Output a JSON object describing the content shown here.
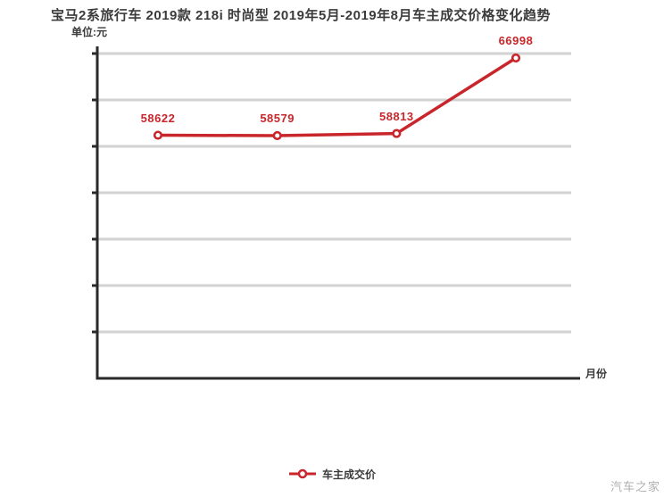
{
  "header": {
    "title": "宝马2系旅行车 2019款 218i 时尚型 2019年5月-2019年8月车主成交价格变化趋势"
  },
  "axes": {
    "y_unit_label": "单位:元",
    "x_axis_label": "月份"
  },
  "legend": {
    "series_label": "车主成交价"
  },
  "watermark": "汽车之家",
  "colors": {
    "accent_red": "#c9262c",
    "grid_gray": "#d2d2d2",
    "axis_dark": "#2a2a2a",
    "text_dark": "#3b3b3b",
    "watermark_gray": "#b0b0b0",
    "marker_fill": "#ffffff"
  },
  "chart_data": {
    "type": "line",
    "title": "宝马2系旅行车 2019款 218i 时尚型 2019年5月-2019年8月车主成交价格变化趋势",
    "xlabel": "月份",
    "ylabel": "单位:元",
    "x": [
      1,
      2,
      3,
      4
    ],
    "x_tick_labels_visible": false,
    "y_tick_labels_visible": false,
    "grid": "horizontal",
    "gridline_count": 7,
    "legend_position": "bottom-center",
    "series": [
      {
        "name": "车主成交价",
        "values": [
          58622,
          58579,
          58813,
          66998
        ],
        "data_labels": [
          "58622",
          "58579",
          "58813",
          "66998"
        ]
      }
    ]
  }
}
